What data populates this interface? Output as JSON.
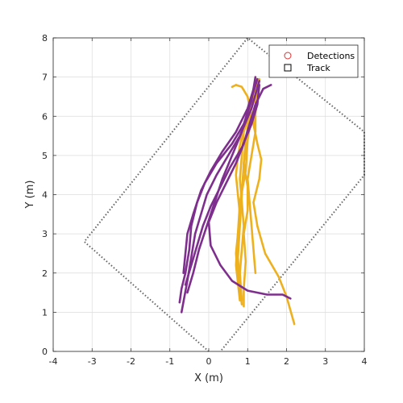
{
  "chart_data": {
    "type": "line",
    "xlabel": "X (m)",
    "ylabel": "Y (m)",
    "xlim": [
      -4,
      4
    ],
    "ylim": [
      0,
      8
    ],
    "xticks": [
      "-4",
      "-3",
      "-2",
      "-1",
      "0",
      "1",
      "2",
      "3",
      "4"
    ],
    "yticks": [
      "0",
      "1",
      "2",
      "3",
      "4",
      "5",
      "6",
      "7",
      "8"
    ],
    "grid": true,
    "legend": {
      "placement": "top-right",
      "entries": [
        {
          "label": "Detections",
          "marker": "circle",
          "color": "#e03030"
        },
        {
          "label": "Track",
          "marker": "square",
          "color": "#000000"
        }
      ]
    },
    "coverage_region": {
      "style": "dotted",
      "color": "#666666",
      "points": [
        [
          0,
          0
        ],
        [
          -3.2,
          2.8
        ],
        [
          1.0,
          8.0
        ],
        [
          4.0,
          5.6
        ],
        [
          4.0,
          4.5
        ],
        [
          0.3,
          0
        ]
      ]
    },
    "series": [
      {
        "color": "#EDB120",
        "points": [
          [
            0.6,
            6.75
          ],
          [
            0.7,
            6.8
          ],
          [
            0.85,
            6.75
          ],
          [
            1.0,
            6.5
          ],
          [
            1.1,
            6.0
          ],
          [
            1.0,
            5.4
          ],
          [
            0.95,
            4.6
          ],
          [
            0.8,
            3.8
          ],
          [
            0.75,
            3.0
          ],
          [
            0.7,
            2.2
          ],
          [
            0.8,
            1.3
          ]
        ]
      },
      {
        "color": "#EDB120",
        "points": [
          [
            1.25,
            6.9
          ],
          [
            1.2,
            6.3
          ],
          [
            1.0,
            5.5
          ],
          [
            0.9,
            4.8
          ],
          [
            0.85,
            4.0
          ],
          [
            0.8,
            3.2
          ],
          [
            0.75,
            2.4
          ],
          [
            0.8,
            1.6
          ],
          [
            0.85,
            1.2
          ]
        ]
      },
      {
        "color": "#EDB120",
        "points": [
          [
            1.3,
            6.95
          ],
          [
            1.25,
            6.4
          ],
          [
            1.15,
            5.8
          ],
          [
            1.25,
            5.3
          ],
          [
            1.35,
            4.9
          ],
          [
            1.3,
            4.4
          ],
          [
            1.15,
            3.8
          ],
          [
            1.25,
            3.2
          ],
          [
            1.45,
            2.5
          ],
          [
            1.8,
            1.9
          ],
          [
            2.0,
            1.4
          ],
          [
            2.2,
            0.7
          ]
        ]
      },
      {
        "color": "#EDB120",
        "points": [
          [
            1.2,
            7.0
          ],
          [
            1.15,
            6.5
          ],
          [
            1.05,
            6.0
          ],
          [
            0.95,
            5.4
          ],
          [
            0.9,
            4.8
          ],
          [
            1.0,
            4.2
          ],
          [
            1.0,
            3.6
          ],
          [
            0.9,
            3.0
          ],
          [
            0.95,
            2.3
          ],
          [
            0.9,
            1.6
          ],
          [
            0.9,
            1.15
          ]
        ]
      },
      {
        "color": "#EDB120",
        "points": [
          [
            1.2,
            6.8
          ],
          [
            1.1,
            6.2
          ],
          [
            0.9,
            5.6
          ],
          [
            0.85,
            5.0
          ],
          [
            0.8,
            4.4
          ],
          [
            0.85,
            3.8
          ],
          [
            0.9,
            3.2
          ],
          [
            0.85,
            2.6
          ],
          [
            0.8,
            2.0
          ],
          [
            0.85,
            1.3
          ]
        ]
      },
      {
        "color": "#EDB120",
        "points": [
          [
            1.15,
            6.6
          ],
          [
            1.0,
            6.0
          ],
          [
            0.85,
            5.5
          ],
          [
            0.75,
            5.0
          ],
          [
            0.7,
            4.5
          ],
          [
            0.75,
            4.0
          ],
          [
            0.8,
            3.5
          ],
          [
            0.75,
            3.0
          ],
          [
            0.7,
            2.5
          ],
          [
            0.75,
            1.9
          ],
          [
            0.8,
            1.4
          ]
        ]
      },
      {
        "color": "#EDB120",
        "points": [
          [
            1.2,
            6.2
          ],
          [
            1.2,
            5.6
          ],
          [
            1.1,
            5.0
          ],
          [
            1.0,
            4.4
          ],
          [
            1.05,
            3.8
          ],
          [
            1.1,
            3.2
          ],
          [
            1.15,
            2.6
          ],
          [
            1.2,
            2.0
          ]
        ]
      },
      {
        "color": "#7E2F8E",
        "points": [
          [
            1.2,
            7.0
          ],
          [
            1.1,
            6.4
          ],
          [
            0.9,
            5.8
          ],
          [
            0.6,
            5.3
          ],
          [
            0.2,
            4.8
          ],
          [
            -0.1,
            4.3
          ],
          [
            -0.3,
            3.8
          ],
          [
            -0.45,
            3.2
          ],
          [
            -0.5,
            2.6
          ],
          [
            -0.6,
            2.0
          ],
          [
            -0.7,
            1.6
          ],
          [
            -0.75,
            1.25
          ]
        ]
      },
      {
        "color": "#7E2F8E",
        "points": [
          [
            1.3,
            6.9
          ],
          [
            1.1,
            6.2
          ],
          [
            0.8,
            5.5
          ],
          [
            0.5,
            5.0
          ],
          [
            0.2,
            4.5
          ],
          [
            -0.05,
            4.0
          ],
          [
            -0.2,
            3.5
          ],
          [
            -0.35,
            3.0
          ],
          [
            -0.45,
            2.4
          ],
          [
            -0.55,
            1.8
          ],
          [
            -0.7,
            1.0
          ]
        ]
      },
      {
        "color": "#7E2F8E",
        "points": [
          [
            1.25,
            6.95
          ],
          [
            1.05,
            6.3
          ],
          [
            0.85,
            5.6
          ],
          [
            0.6,
            5.0
          ],
          [
            0.35,
            4.4
          ],
          [
            0.15,
            3.8
          ],
          [
            -0.05,
            3.2
          ],
          [
            -0.25,
            2.6
          ],
          [
            -0.4,
            2.0
          ],
          [
            -0.55,
            1.5
          ]
        ]
      },
      {
        "color": "#7E2F8E",
        "points": [
          [
            1.2,
            6.85
          ],
          [
            1.0,
            6.2
          ],
          [
            0.7,
            5.6
          ],
          [
            0.35,
            5.1
          ],
          [
            0.05,
            4.6
          ],
          [
            -0.2,
            4.1
          ],
          [
            -0.4,
            3.5
          ],
          [
            -0.55,
            3.0
          ],
          [
            -0.6,
            2.5
          ],
          [
            -0.65,
            2.0
          ]
        ]
      },
      {
        "color": "#7E2F8E",
        "points": [
          [
            1.6,
            6.8
          ],
          [
            1.4,
            6.7
          ],
          [
            1.2,
            6.3
          ],
          [
            1.05,
            5.8
          ],
          [
            0.9,
            5.3
          ],
          [
            0.7,
            4.8
          ],
          [
            0.45,
            4.3
          ],
          [
            0.2,
            3.8
          ],
          [
            0.0,
            3.3
          ],
          [
            0.05,
            2.7
          ],
          [
            0.3,
            2.2
          ],
          [
            0.6,
            1.8
          ],
          [
            1.0,
            1.55
          ],
          [
            1.5,
            1.45
          ],
          [
            1.9,
            1.45
          ],
          [
            2.1,
            1.35
          ]
        ]
      },
      {
        "color": "#7E2F8E",
        "points": [
          [
            1.3,
            6.8
          ],
          [
            1.25,
            6.3
          ],
          [
            1.1,
            5.8
          ],
          [
            0.85,
            5.2
          ],
          [
            0.55,
            4.7
          ],
          [
            0.3,
            4.2
          ],
          [
            0.05,
            3.7
          ],
          [
            -0.15,
            3.2
          ],
          [
            -0.3,
            2.7
          ],
          [
            -0.45,
            2.2
          ],
          [
            -0.6,
            1.7
          ]
        ]
      }
    ]
  }
}
